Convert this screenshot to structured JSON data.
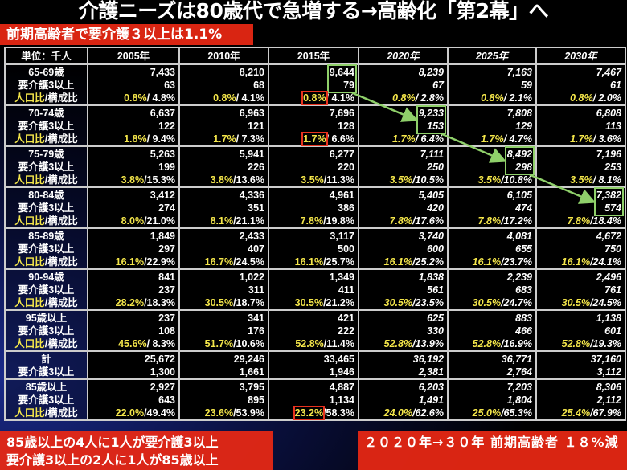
{
  "title": "介護ニーズは80歳代で急増する→高齢化「第2幕」へ",
  "table": {
    "unit_label": "単位：千人",
    "years": [
      "2005年",
      "2010年",
      "2015年",
      "2020年",
      "2025年",
      "2030年"
    ],
    "projected_from_index": 3,
    "care_label": "要介護3以上",
    "ratio_label_a": "人口比",
    "ratio_label_b": "/構成比",
    "groups": [
      {
        "age": "65-69歳",
        "cells": [
          [
            "7,433",
            "63",
            "0.8%",
            "/ 4.8%"
          ],
          [
            "8,210",
            "68",
            "0.8%",
            "/ 4.1%"
          ],
          [
            "9,644",
            "79",
            "0.8%",
            "/ 4.1%"
          ],
          [
            "8,239",
            "67",
            "0.8%",
            "/ 2.8%"
          ],
          [
            "7,163",
            "59",
            "0.8%",
            "/ 2.1%"
          ],
          [
            "7,467",
            "61",
            "0.8%",
            "/ 2.0%"
          ]
        ]
      },
      {
        "age": "70-74歳",
        "cells": [
          [
            "6,637",
            "122",
            "1.8%",
            "/ 9.4%"
          ],
          [
            "6,963",
            "121",
            "1.7%",
            "/ 7.3%"
          ],
          [
            "7,696",
            "128",
            "1.7%",
            "/ 6.6%"
          ],
          [
            "9,233",
            "153",
            "1.7%",
            "/ 6.4%"
          ],
          [
            "7,808",
            "129",
            "1.7%",
            "/ 4.7%"
          ],
          [
            "6,808",
            "113",
            "1.7%",
            "/ 3.6%"
          ]
        ]
      },
      {
        "age": "75-79歳",
        "cells": [
          [
            "5,263",
            "199",
            "3.8%",
            "/15.3%"
          ],
          [
            "5,941",
            "226",
            "3.8%",
            "/13.6%"
          ],
          [
            "6,277",
            "220",
            "3.5%",
            "/11.3%"
          ],
          [
            "7,111",
            "250",
            "3.5%",
            "/10.5%"
          ],
          [
            "8,492",
            "298",
            "3.5%",
            "/10.8%"
          ],
          [
            "7,196",
            "253",
            "3.5%",
            "/ 8.1%"
          ]
        ]
      },
      {
        "age": "80-84歳",
        "cells": [
          [
            "3,412",
            "274",
            "8.0%",
            "/21.0%"
          ],
          [
            "4,336",
            "351",
            "8.1%",
            "/21.1%"
          ],
          [
            "4,961",
            "386",
            "7.8%",
            "/19.8%"
          ],
          [
            "5,405",
            "420",
            "7.8%",
            "/17.6%"
          ],
          [
            "6,105",
            "474",
            "7.8%",
            "/17.2%"
          ],
          [
            "7,382",
            "574",
            "7.8%",
            "/18.4%"
          ]
        ]
      },
      {
        "age": "85-89歳",
        "cells": [
          [
            "1,849",
            "297",
            "16.1%",
            "/22.9%"
          ],
          [
            "2,433",
            "407",
            "16.7%",
            "/24.5%"
          ],
          [
            "3,117",
            "500",
            "16.1%",
            "/25.7%"
          ],
          [
            "3,740",
            "600",
            "16.1%",
            "/25.2%"
          ],
          [
            "4,081",
            "655",
            "16.1%",
            "/23.7%"
          ],
          [
            "4,672",
            "750",
            "16.1%",
            "/24.1%"
          ]
        ]
      },
      {
        "age": "90-94歳",
        "cells": [
          [
            "841",
            "237",
            "28.2%",
            "/18.3%"
          ],
          [
            "1,022",
            "311",
            "30.5%",
            "/18.7%"
          ],
          [
            "1,349",
            "411",
            "30.5%",
            "/21.2%"
          ],
          [
            "1,838",
            "561",
            "30.5%",
            "/23.5%"
          ],
          [
            "2,239",
            "683",
            "30.5%",
            "/24.7%"
          ],
          [
            "2,496",
            "761",
            "30.5%",
            "/24.5%"
          ]
        ]
      },
      {
        "age": "95歳以上",
        "cells": [
          [
            "237",
            "108",
            "45.6%",
            "/ 8.3%"
          ],
          [
            "341",
            "176",
            "51.7%",
            "/10.6%"
          ],
          [
            "421",
            "222",
            "52.8%",
            "/11.4%"
          ],
          [
            "625",
            "330",
            "52.8%",
            "/13.9%"
          ],
          [
            "883",
            "466",
            "52.8%",
            "/16.9%"
          ],
          [
            "1,138",
            "601",
            "52.8%",
            "/19.3%"
          ]
        ]
      }
    ],
    "total": {
      "age": "計",
      "cells": [
        [
          "25,672",
          "1,300"
        ],
        [
          "29,246",
          "1,661"
        ],
        [
          "33,465",
          "1,946"
        ],
        [
          "36,192",
          "2,381"
        ],
        [
          "36,771",
          "2,764"
        ],
        [
          "37,160",
          "3,112"
        ]
      ]
    },
    "over85": {
      "age": "85歳以上",
      "cells": [
        [
          "2,927",
          "643",
          "22.0%",
          "/49.4%"
        ],
        [
          "3,795",
          "895",
          "23.6%",
          "/53.9%"
        ],
        [
          "4,887",
          "1,134",
          "23.2%",
          "/58.3%"
        ],
        [
          "6,203",
          "1,491",
          "24.0%",
          "/62.6%"
        ],
        [
          "7,203",
          "1,804",
          "25.0%",
          "/65.3%"
        ],
        [
          "8,306",
          "2,112",
          "25.4%",
          "/67.9%"
        ]
      ]
    }
  },
  "callouts": {
    "early_elderly": "前期高齢者で要介護３以上は1.1%",
    "over85_line1": "85歳以上の4人に1人が要介護3以上",
    "over85_line2": "要介護3以上の2人に1人が85歳以上",
    "decline": "２０２０年→３０年 前期高齢者 １８%減"
  },
  "colors": {
    "highlight_red": "#e8321e",
    "highlight_green": "#8fd06a",
    "ratio_yellow": "#f4e64a"
  }
}
